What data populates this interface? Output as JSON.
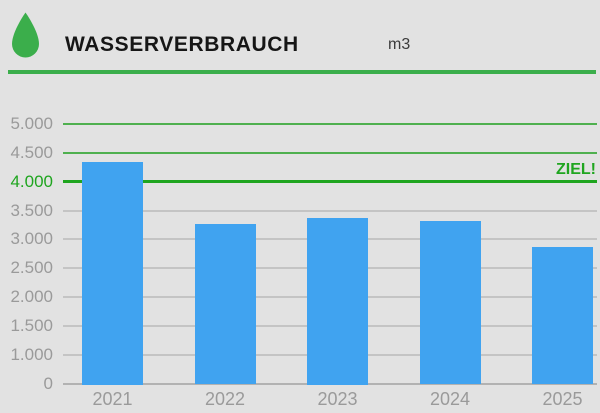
{
  "header": {
    "title": "WASSERVERBRAUCH",
    "unit": "m3"
  },
  "colors": {
    "background": "#e2e2e2",
    "accent_green": "#3bae4b",
    "goal_green": "#1fa51f",
    "grid_green": "#4fb04f",
    "grid_gray": "#c4c4c4",
    "axis_gray": "#b2b2b2",
    "bar_blue": "#40a3f0",
    "label_gray": "#9a9a9a"
  },
  "chart_data": {
    "type": "bar",
    "title": "WASSERVERBRAUCH",
    "ylabel": "m3",
    "categories": [
      "2021",
      "2022",
      "2023",
      "2024",
      "2025"
    ],
    "values": [
      4350,
      3260,
      3370,
      3310,
      2870
    ],
    "ylim": [
      0,
      5000
    ],
    "grid": true,
    "legend": "none",
    "y_ticks": [
      {
        "label": "5.000",
        "value": 5000,
        "line": "green"
      },
      {
        "label": "4.500",
        "value": 4500,
        "line": "green"
      },
      {
        "label": "4.000",
        "value": 4000,
        "line": "goal"
      },
      {
        "label": "3.500",
        "value": 3500,
        "line": "gray"
      },
      {
        "label": "3.000",
        "value": 3000,
        "line": "gray"
      },
      {
        "label": "2.500",
        "value": 2500,
        "line": "gray"
      },
      {
        "label": "2.000",
        "value": 2000,
        "line": "gray"
      },
      {
        "label": "1.500",
        "value": 1500,
        "line": "gray"
      },
      {
        "label": "1.000",
        "value": 1000,
        "line": "gray"
      },
      {
        "label": "0",
        "value": 0,
        "line": "axis"
      }
    ],
    "goal": {
      "value": 4000,
      "label": "ZIEL!"
    }
  }
}
